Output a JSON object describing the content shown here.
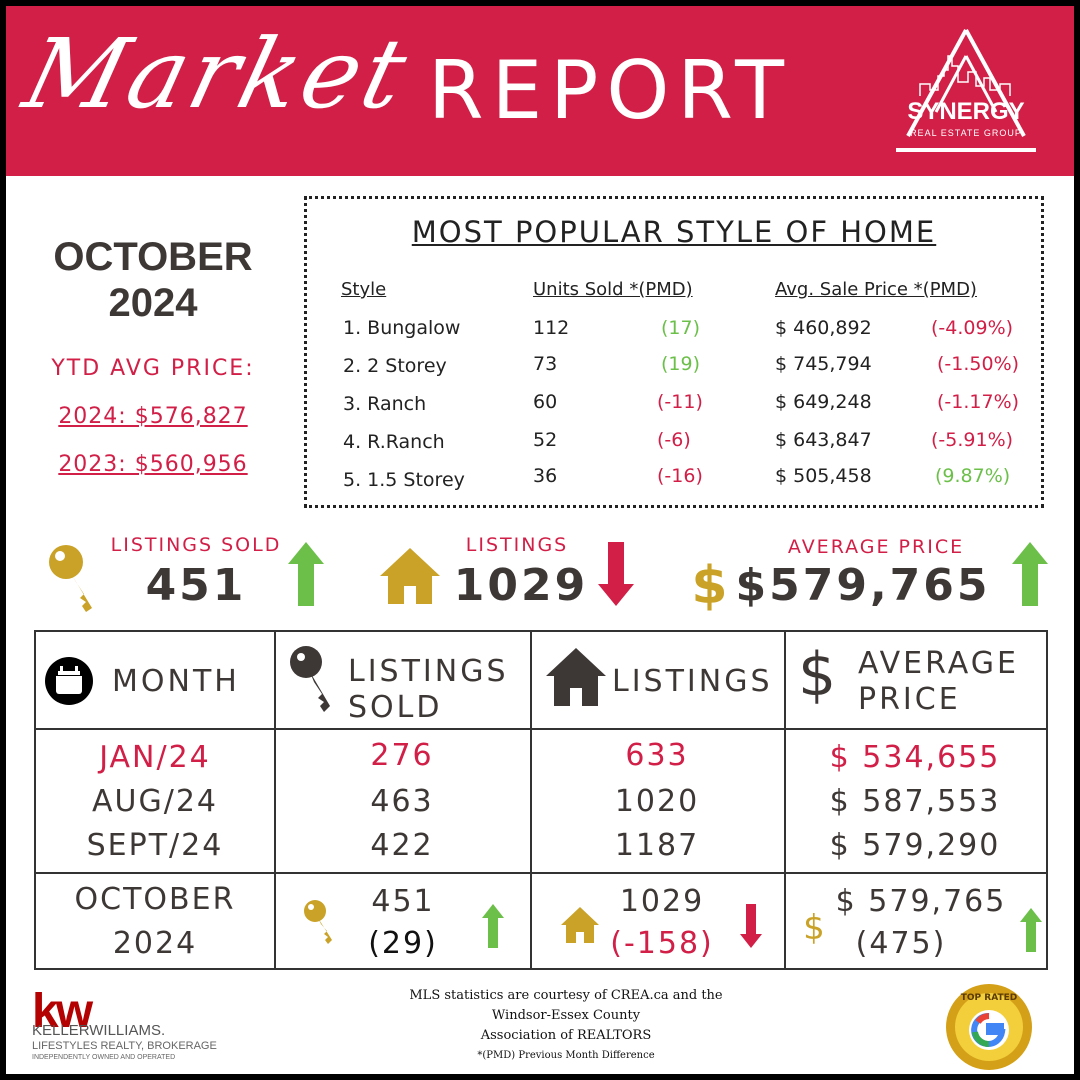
{
  "banner": {
    "script_title": "Market",
    "report_title": "REPORT"
  },
  "logo": {
    "name": "SYNERGY",
    "sub": "REAL ESTATE GROUP"
  },
  "period": {
    "month": "OCTOBER",
    "year": "2024"
  },
  "ytd": {
    "label": "YTD AVG PRICE:",
    "line_2024": "2024: $576,827",
    "line_2023": "2023: $560,956"
  },
  "popular": {
    "title": "MOST POPULAR STYLE OF HOME",
    "headers": {
      "style": "Style",
      "units": "Units Sold *(PMD)",
      "price": "Avg. Sale Price *(PMD)"
    },
    "rows": [
      {
        "style": "1. Bungalow",
        "units": "112",
        "units_pmd": "(17)",
        "price": "$ 460,892",
        "price_pmd": "(-4.09%)"
      },
      {
        "style": "2. 2 Storey",
        "units": "73",
        "units_pmd": "(19)",
        "price": "$ 745,794",
        "price_pmd": "(-1.50%)"
      },
      {
        "style": "3. Ranch",
        "units": "60",
        "units_pmd": "(-11)",
        "price": "$ 649,248",
        "price_pmd": "(-1.17%)"
      },
      {
        "style": "4. R.Ranch",
        "units": "52",
        "units_pmd": "(-6)",
        "price": "$ 643,847",
        "price_pmd": "(-5.91%)"
      },
      {
        "style": "5. 1.5 Storey",
        "units": "36",
        "units_pmd": "(-16)",
        "price": "$ 505,458",
        "price_pmd": "(9.87%)"
      }
    ]
  },
  "summary": {
    "sold_label": "LISTINGS SOLD",
    "sold_value": "451",
    "listings_label": "LISTINGS",
    "listings_value": "1029",
    "price_label": "AVERAGE PRICE",
    "price_value": "$579,765"
  },
  "table": {
    "headers": {
      "month": "MONTH",
      "sold_1": "LISTINGS",
      "sold_2": "SOLD",
      "listings": "LISTINGS",
      "price_1": "AVERAGE",
      "price_2": "PRICE"
    },
    "rows": [
      {
        "month": "JAN/24",
        "sold": "276",
        "listings": "633",
        "price": "$ 534,655"
      },
      {
        "month": "AUG/24",
        "sold": "463",
        "listings": "1020",
        "price": "$ 587,553"
      },
      {
        "month": "SEPT/24",
        "sold": "422",
        "listings": "1187",
        "price": "$ 579,290"
      }
    ],
    "current": {
      "month_1": "OCTOBER",
      "month_2": "2024",
      "sold": "451",
      "sold_pmd": "(29)",
      "listings": "1029",
      "listings_pmd": "(-158)",
      "price": "$ 579,765",
      "price_pmd": "(475)"
    }
  },
  "footer": {
    "line1": "MLS statistics are courtesy of CREA.ca and the",
    "line2": "Windsor-Essex County",
    "line3": "Association of REALTORS",
    "line4": "*(PMD) Previous Month Difference",
    "kw_logo": "kw",
    "kw_name": "KELLERWILLIAMS.",
    "kw_sub": "LIFESTYLES REALTY, BROKERAGE",
    "kw_sub2": "INDEPENDENTLY OWNED AND OPERATED",
    "badge_text": "TOP RATED"
  },
  "colors": {
    "brand_red": "#d11f47",
    "gold": "#c9a227",
    "green": "#6cc04a",
    "text": "#3d3836"
  }
}
